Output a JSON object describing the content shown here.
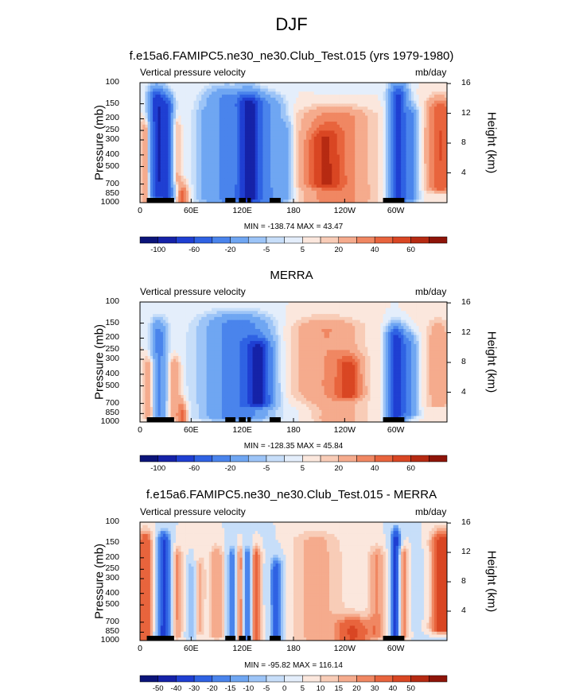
{
  "header": {
    "title": "DJF"
  },
  "colors": {
    "blue_scale": [
      "#0b1479",
      "#1522a8",
      "#1f3fd2",
      "#2f62e3",
      "#4a84ec",
      "#6fa6f2",
      "#9cc4f7",
      "#c7def9",
      "#e4eefb"
    ],
    "red_scale": [
      "#fbe7dd",
      "#f8ccb7",
      "#f5ab8d",
      "#f08762",
      "#e8643d",
      "#d94623",
      "#b62a12",
      "#8e1409"
    ],
    "land": "#000000"
  },
  "chart_data": [
    {
      "type": "heatmap",
      "title": "f.e15a6.FAMIPC5.ne30_ne30.Club_Test.015 (yrs 1979-1980)",
      "left_label": "Vertical pressure velocity",
      "right_label": "mb/day",
      "ylabel": "Pressure (mb)",
      "ylabel_right": "Height (km)",
      "xticks": [
        "0",
        "60E",
        "120E",
        "180",
        "120W",
        "60W"
      ],
      "xtick_lon": [
        0,
        60,
        120,
        180,
        240,
        300
      ],
      "xlim": [
        0,
        360
      ],
      "yticks": [
        "100",
        "150",
        "200",
        "250",
        "300",
        "400",
        "500",
        "700",
        "850",
        "1000"
      ],
      "ytick_p": [
        100,
        150,
        200,
        250,
        300,
        400,
        500,
        700,
        850,
        1000
      ],
      "ylim": [
        1000,
        100
      ],
      "yticks_right": [
        "16",
        "12",
        "8",
        "4"
      ],
      "ytick_right_km": [
        16,
        12,
        8,
        4
      ],
      "stats": "MIN = -138.74  MAX =  43.47",
      "colorbar": [
        "-100",
        "-60",
        "-20",
        "-5",
        "5",
        "20",
        "40",
        "60"
      ],
      "colorbar_levels": 18,
      "features": [
        {
          "lon": 20,
          "w": 9,
          "pt": 140,
          "pb": 880,
          "v": -95
        },
        {
          "lon": 32,
          "w": 7,
          "pt": 160,
          "pb": 900,
          "v": -70
        },
        {
          "lon": 8,
          "w": 7,
          "pt": 250,
          "pb": 950,
          "v": 25
        },
        {
          "lon": 42,
          "w": 6,
          "pt": 250,
          "pb": 650,
          "v": 18
        },
        {
          "lon": 50,
          "w": 6,
          "pt": 880,
          "pb": 1000,
          "v": 35
        },
        {
          "lon": 100,
          "w": 22,
          "pt": 140,
          "pb": 950,
          "v": -45
        },
        {
          "lon": 128,
          "w": 14,
          "pt": 150,
          "pb": 930,
          "v": -95
        },
        {
          "lon": 150,
          "w": 18,
          "pt": 160,
          "pb": 950,
          "v": -40
        },
        {
          "lon": 170,
          "w": 10,
          "pt": 250,
          "pb": 900,
          "v": -18
        },
        {
          "lon": 230,
          "w": 38,
          "pt": 200,
          "pb": 950,
          "v": 30
        },
        {
          "lon": 215,
          "w": 20,
          "pt": 300,
          "pb": 700,
          "v": 28
        },
        {
          "lon": 303,
          "w": 10,
          "pt": 130,
          "pb": 950,
          "v": -85
        },
        {
          "lon": 318,
          "w": 8,
          "pt": 200,
          "pb": 900,
          "v": -45
        },
        {
          "lon": 352,
          "w": 14,
          "pt": 170,
          "pb": 750,
          "v": 38
        },
        {
          "lon": 75,
          "w": 10,
          "pt": 200,
          "pb": 900,
          "v": -12
        }
      ],
      "land": [
        [
          8,
          40
        ],
        [
          100,
          112
        ],
        [
          116,
          124
        ],
        [
          126,
          130
        ],
        [
          152,
          165
        ],
        [
          285,
          310
        ]
      ]
    },
    {
      "type": "heatmap",
      "title": "MERRA",
      "left_label": "Vertical pressure velocity",
      "right_label": "mb/day",
      "ylabel": "Pressure (mb)",
      "ylabel_right": "Height (km)",
      "xticks": [
        "0",
        "60E",
        "120E",
        "180",
        "120W",
        "60W"
      ],
      "xtick_lon": [
        0,
        60,
        120,
        180,
        240,
        300
      ],
      "xlim": [
        0,
        360
      ],
      "yticks": [
        "100",
        "150",
        "200",
        "250",
        "300",
        "400",
        "500",
        "700",
        "850",
        "1000"
      ],
      "ytick_p": [
        100,
        150,
        200,
        250,
        300,
        400,
        500,
        700,
        850,
        1000
      ],
      "ylim": [
        1000,
        100
      ],
      "yticks_right": [
        "16",
        "12",
        "8",
        "4"
      ],
      "ytick_right_km": [
        16,
        12,
        8,
        4
      ],
      "stats": "MIN = -128.35  MAX =  45.84",
      "colorbar": [
        "-100",
        "-60",
        "-20",
        "-5",
        "5",
        "20",
        "40",
        "60"
      ],
      "colorbar_levels": 18,
      "features": [
        {
          "lon": 22,
          "w": 9,
          "pt": 180,
          "pb": 900,
          "v": -45
        },
        {
          "lon": 12,
          "w": 8,
          "pt": 350,
          "pb": 880,
          "v": 25
        },
        {
          "lon": 40,
          "w": 8,
          "pt": 350,
          "pb": 900,
          "v": 20
        },
        {
          "lon": 50,
          "w": 5,
          "pt": 850,
          "pb": 1000,
          "v": 30
        },
        {
          "lon": 115,
          "w": 35,
          "pt": 160,
          "pb": 900,
          "v": -55
        },
        {
          "lon": 140,
          "w": 15,
          "pt": 250,
          "pb": 700,
          "v": -80
        },
        {
          "lon": 220,
          "w": 40,
          "pt": 170,
          "pb": 950,
          "v": 22
        },
        {
          "lon": 245,
          "w": 15,
          "pt": 350,
          "pb": 600,
          "v": 35
        },
        {
          "lon": 300,
          "w": 10,
          "pt": 200,
          "pb": 1000,
          "v": -90
        },
        {
          "lon": 315,
          "w": 10,
          "pt": 230,
          "pb": 850,
          "v": -40
        },
        {
          "lon": 350,
          "w": 12,
          "pt": 180,
          "pb": 700,
          "v": 15
        },
        {
          "lon": 200,
          "w": 30,
          "pt": 830,
          "pb": 1000,
          "v": -12
        }
      ],
      "land": [
        [
          8,
          40
        ],
        [
          100,
          112
        ],
        [
          116,
          124
        ],
        [
          126,
          130
        ],
        [
          152,
          165
        ],
        [
          285,
          310
        ]
      ]
    },
    {
      "type": "heatmap",
      "title": "f.e15a6.FAMIPC5.ne30_ne30.Club_Test.015 - MERRA",
      "left_label": "Vertical pressure velocity",
      "right_label": "mb/day",
      "ylabel": "Pressure (mb)",
      "ylabel_right": "Height (km)",
      "xticks": [
        "0",
        "60E",
        "120E",
        "180",
        "120W",
        "60W"
      ],
      "xtick_lon": [
        0,
        60,
        120,
        180,
        240,
        300
      ],
      "xlim": [
        0,
        360
      ],
      "yticks": [
        "100",
        "150",
        "200",
        "250",
        "300",
        "400",
        "500",
        "700",
        "850",
        "1000"
      ],
      "ytick_p": [
        100,
        150,
        200,
        250,
        300,
        400,
        500,
        700,
        850,
        1000
      ],
      "ylim": [
        1000,
        100
      ],
      "yticks_right": [
        "16",
        "12",
        "8",
        "4"
      ],
      "ytick_right_km": [
        16,
        12,
        8,
        4
      ],
      "stats": "MIN = -95.82  MAX = 116.14",
      "colorbar": [
        "-50",
        "-40",
        "-30",
        "-20",
        "-15",
        "-10",
        "-5",
        "0",
        "5",
        "10",
        "15",
        "20",
        "30",
        "40",
        "50"
      ],
      "colorbar_levels": 18,
      "features": [
        {
          "lon": 6,
          "w": 8,
          "pt": 150,
          "pb": 950,
          "v": 30
        },
        {
          "lon": 28,
          "w": 8,
          "pt": 150,
          "pb": 950,
          "v": -45
        },
        {
          "lon": 44,
          "w": 5,
          "pt": 200,
          "pb": 900,
          "v": 15
        },
        {
          "lon": 60,
          "w": 5,
          "pt": 250,
          "pb": 900,
          "v": -15
        },
        {
          "lon": 90,
          "w": 8,
          "pt": 200,
          "pb": 900,
          "v": 15
        },
        {
          "lon": 108,
          "w": 5,
          "pt": 200,
          "pb": 950,
          "v": -25
        },
        {
          "lon": 118,
          "w": 5,
          "pt": 200,
          "pb": 950,
          "v": 20
        },
        {
          "lon": 126,
          "w": 5,
          "pt": 200,
          "pb": 950,
          "v": -30
        },
        {
          "lon": 136,
          "w": 6,
          "pt": 200,
          "pb": 950,
          "v": 25
        },
        {
          "lon": 160,
          "w": 7,
          "pt": 250,
          "pb": 950,
          "v": -35
        },
        {
          "lon": 205,
          "w": 28,
          "pt": 150,
          "pb": 950,
          "v": 12
        },
        {
          "lon": 250,
          "w": 20,
          "pt": 800,
          "pb": 1000,
          "v": 30
        },
        {
          "lon": 278,
          "w": 10,
          "pt": 200,
          "pb": 900,
          "v": 15
        },
        {
          "lon": 300,
          "w": 6,
          "pt": 140,
          "pb": 950,
          "v": -45
        },
        {
          "lon": 308,
          "w": 6,
          "pt": 200,
          "pb": 900,
          "v": 25
        },
        {
          "lon": 354,
          "w": 12,
          "pt": 150,
          "pb": 800,
          "v": 40
        },
        {
          "lon": 70,
          "w": 6,
          "pt": 250,
          "pb": 850,
          "v": 10
        }
      ],
      "land": [
        [
          8,
          40
        ],
        [
          100,
          112
        ],
        [
          116,
          124
        ],
        [
          126,
          130
        ],
        [
          152,
          165
        ],
        [
          285,
          310
        ]
      ]
    }
  ]
}
